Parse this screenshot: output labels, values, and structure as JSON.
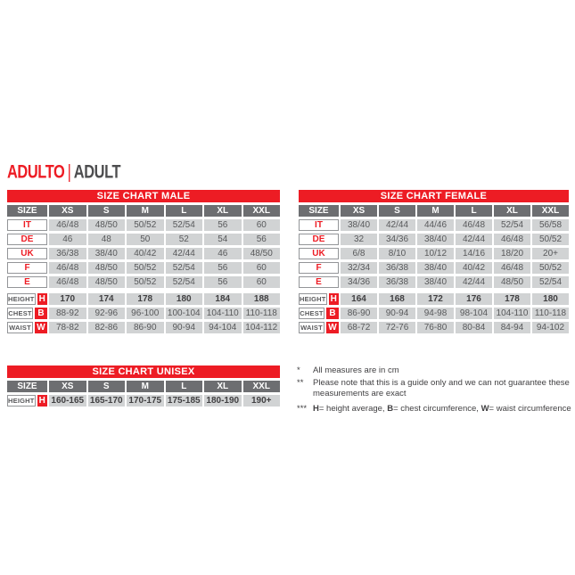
{
  "page": {
    "title_primary": "ADULTO",
    "title_separator": "|",
    "title_secondary": "ADULT"
  },
  "colors": {
    "accent_red": "#ed1c24",
    "header_gray": "#6d6e71",
    "cell_gray": "#d1d3d4",
    "text_gray": "#58595b"
  },
  "tables": {
    "male": {
      "title": "SIZE CHART MALE",
      "size_label": "SIZE",
      "columns": [
        "XS",
        "S",
        "M",
        "L",
        "XL",
        "XXL"
      ],
      "size_rows": [
        {
          "label": "IT",
          "values": [
            "46/48",
            "48/50",
            "50/52",
            "52/54",
            "56",
            "60"
          ]
        },
        {
          "label": "DE",
          "values": [
            "46",
            "48",
            "50",
            "52",
            "54",
            "56"
          ]
        },
        {
          "label": "UK",
          "values": [
            "36/38",
            "38/40",
            "40/42",
            "42/44",
            "46",
            "48/50"
          ]
        },
        {
          "label": "F",
          "values": [
            "46/48",
            "48/50",
            "50/52",
            "52/54",
            "56",
            "60"
          ]
        },
        {
          "label": "E",
          "values": [
            "46/48",
            "48/50",
            "50/52",
            "52/54",
            "56",
            "60"
          ]
        }
      ],
      "measure_rows": [
        {
          "label": "HEIGHT",
          "letter": "H",
          "bold": true,
          "values": [
            "170",
            "174",
            "178",
            "180",
            "184",
            "188"
          ]
        },
        {
          "label": "CHEST",
          "letter": "B",
          "bold": false,
          "values": [
            "88-92",
            "92-96",
            "96-100",
            "100-104",
            "104-110",
            "110-118"
          ]
        },
        {
          "label": "WAIST",
          "letter": "W",
          "bold": false,
          "values": [
            "78-82",
            "82-86",
            "86-90",
            "90-94",
            "94-104",
            "104-112"
          ]
        }
      ]
    },
    "female": {
      "title": "SIZE CHART FEMALE",
      "size_label": "SIZE",
      "columns": [
        "XS",
        "S",
        "M",
        "L",
        "XL",
        "XXL"
      ],
      "size_rows": [
        {
          "label": "IT",
          "values": [
            "38/40",
            "42/44",
            "44/46",
            "46/48",
            "52/54",
            "56/58"
          ]
        },
        {
          "label": "DE",
          "values": [
            "32",
            "34/36",
            "38/40",
            "42/44",
            "46/48",
            "50/52"
          ]
        },
        {
          "label": "UK",
          "values": [
            "6/8",
            "8/10",
            "10/12",
            "14/16",
            "18/20",
            "20+"
          ]
        },
        {
          "label": "F",
          "values": [
            "32/34",
            "36/38",
            "38/40",
            "40/42",
            "46/48",
            "50/52"
          ]
        },
        {
          "label": "E",
          "values": [
            "34/36",
            "36/38",
            "38/40",
            "42/44",
            "48/50",
            "52/54"
          ]
        }
      ],
      "measure_rows": [
        {
          "label": "HEIGHT",
          "letter": "H",
          "bold": true,
          "values": [
            "164",
            "168",
            "172",
            "176",
            "178",
            "180"
          ]
        },
        {
          "label": "CHEST",
          "letter": "B",
          "bold": false,
          "values": [
            "86-90",
            "90-94",
            "94-98",
            "98-104",
            "104-110",
            "110-118"
          ]
        },
        {
          "label": "WAIST",
          "letter": "W",
          "bold": false,
          "values": [
            "68-72",
            "72-76",
            "76-80",
            "80-84",
            "84-94",
            "94-102"
          ]
        }
      ]
    },
    "unisex": {
      "title": "SIZE CHART UNISEX",
      "size_label": "SIZE",
      "columns": [
        "XS",
        "S",
        "M",
        "L",
        "XL",
        "XXL"
      ],
      "size_rows": [],
      "measure_rows": [
        {
          "label": "HEIGHT",
          "letter": "H",
          "bold": true,
          "values": [
            "160-165",
            "165-170",
            "170-175",
            "175-185",
            "180-190",
            "190+"
          ]
        }
      ]
    }
  },
  "footnotes": [
    {
      "marker": "*",
      "segments": [
        {
          "text": "All measures are in cm",
          "bold": false
        }
      ]
    },
    {
      "marker": "**",
      "segments": [
        {
          "text": "Please note that this is a guide only and we can not guarantee these measurements are exact",
          "bold": false
        }
      ]
    },
    {
      "marker": "***",
      "segments": [
        {
          "text": "H",
          "bold": true
        },
        {
          "text": "= height average, ",
          "bold": false
        },
        {
          "text": "B",
          "bold": true
        },
        {
          "text": "= chest circumference, ",
          "bold": false
        },
        {
          "text": "W",
          "bold": true
        },
        {
          "text": "= waist circumference",
          "bold": false
        }
      ]
    }
  ]
}
